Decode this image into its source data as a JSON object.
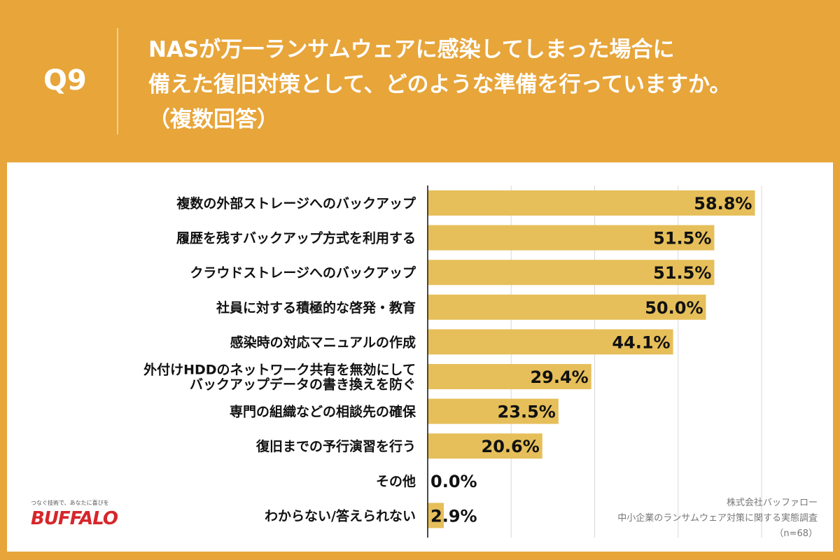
{
  "header": {
    "question_number": "Q9",
    "title_lines": [
      "NASが万一ランサムウェアに感染してしまった場合に",
      "備えた復旧対策として、どのような準備を行っていますか。",
      "（複数回答）"
    ]
  },
  "logo": {
    "slogan": "つなぐ技術で、あなたに喜びを",
    "brand": "BUFFALO"
  },
  "source": {
    "company": "株式会社バッファロー",
    "survey": "中小企業のランサムウェア対策に関する実態調査",
    "sample": "（n=68）"
  },
  "chart_data": {
    "type": "bar",
    "orientation": "horizontal",
    "categories": [
      [
        "複数の外部ストレージへのバックアップ"
      ],
      [
        "履歴を残すバックアップ方式を利用する"
      ],
      [
        "クラウドストレージへのバックアップ"
      ],
      [
        "社員に対する積極的な啓発・教育"
      ],
      [
        "感染時の対応マニュアルの作成"
      ],
      [
        "外付けHDDのネットワーク共有を無効にして",
        "バックアップデータの書き換えを防ぐ"
      ],
      [
        "専門の組織などの相談先の確保"
      ],
      [
        "復旧までの予行演習を行う"
      ],
      [
        "その他"
      ],
      [
        "わからない/答えられない"
      ]
    ],
    "values": [
      58.8,
      51.5,
      51.5,
      50.0,
      44.1,
      29.4,
      23.5,
      20.6,
      0.0,
      2.9
    ],
    "data_labels": [
      "58.8%",
      "51.5%",
      "51.5%",
      "50.0%",
      "44.1%",
      "29.4%",
      "23.5%",
      "20.6%",
      "0.0%",
      "2.9%"
    ],
    "xlim": [
      0,
      60
    ],
    "gridlines": [
      15,
      30,
      45,
      60
    ],
    "grid": true,
    "bar_color": "#e6bf5a"
  }
}
